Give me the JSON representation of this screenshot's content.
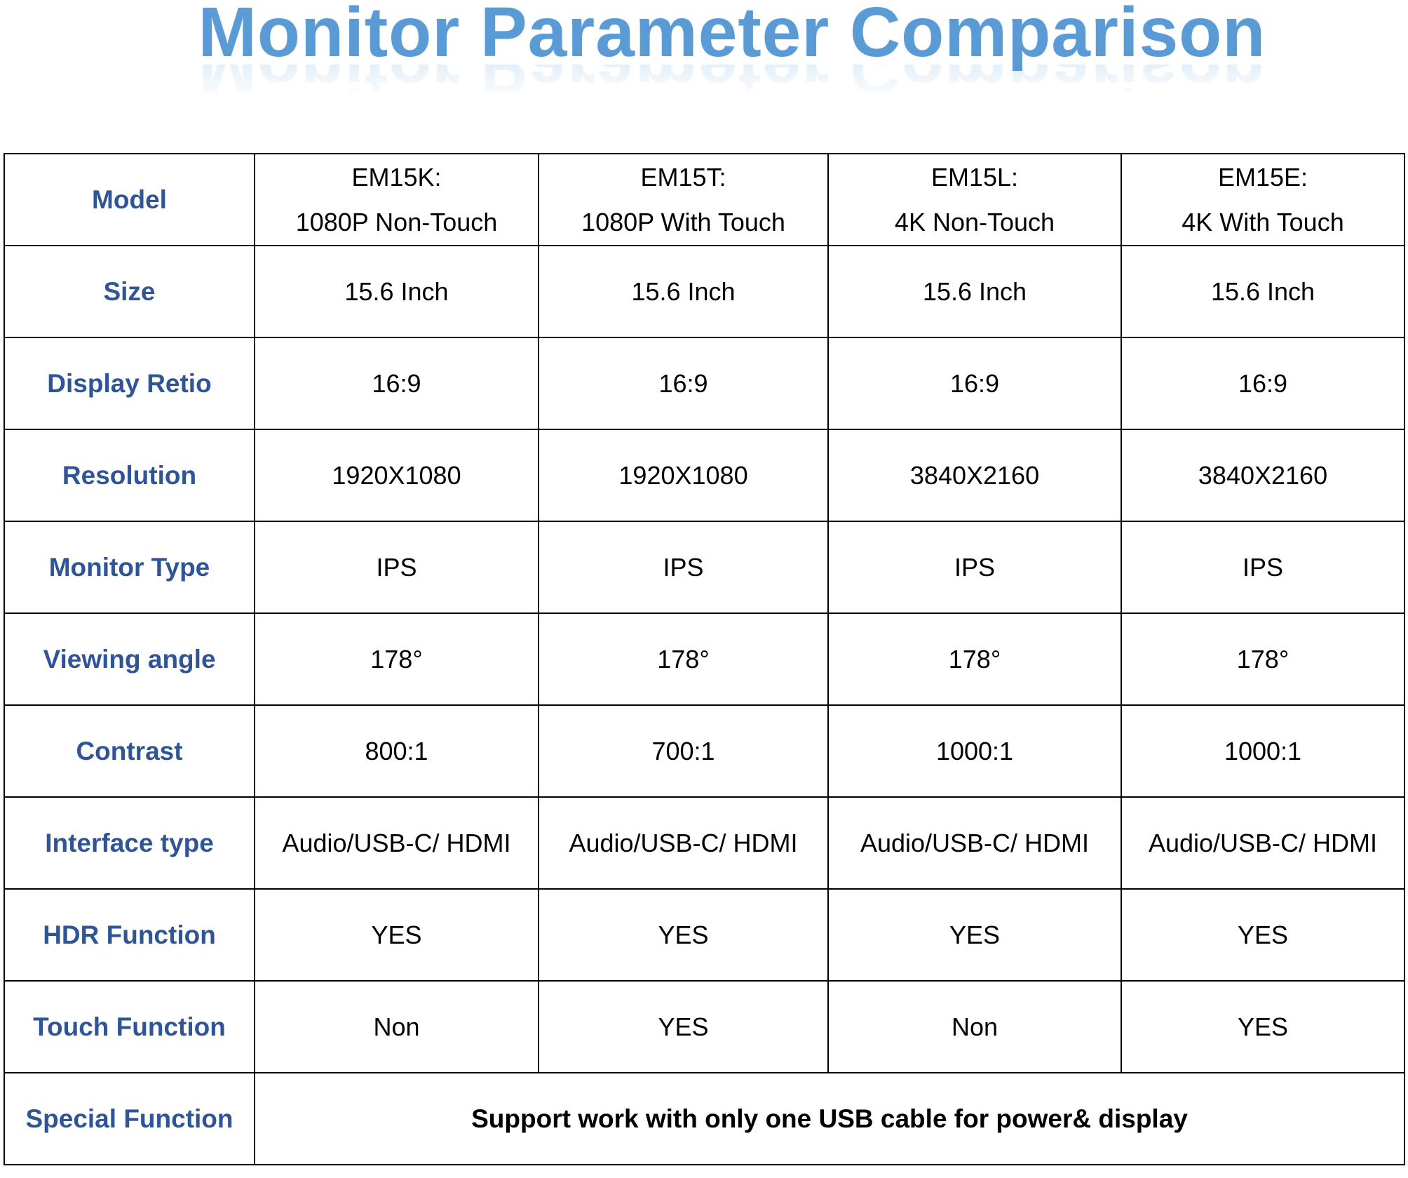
{
  "title": "Monitor Parameter Comparison",
  "table": {
    "models": [
      {
        "code": "EM15K:",
        "desc": "1080P Non-Touch"
      },
      {
        "code": "EM15T:",
        "desc": "1080P With Touch"
      },
      {
        "code": "EM15L:",
        "desc": "4K Non-Touch"
      },
      {
        "code": "EM15E:",
        "desc": "4K With Touch"
      }
    ],
    "rows": [
      {
        "label": "Model"
      },
      {
        "label": "Size",
        "values": [
          "15.6 Inch",
          "15.6 Inch",
          "15.6 Inch",
          "15.6 Inch"
        ]
      },
      {
        "label": "Display Retio",
        "values": [
          "16:9",
          "16:9",
          "16:9",
          "16:9"
        ]
      },
      {
        "label": "Resolution",
        "values": [
          "1920X1080",
          "1920X1080",
          "3840X2160",
          "3840X2160"
        ]
      },
      {
        "label": "Monitor Type",
        "values": [
          "IPS",
          "IPS",
          "IPS",
          "IPS"
        ]
      },
      {
        "label": "Viewing angle",
        "values": [
          "178°",
          "178°",
          "178°",
          "178°"
        ]
      },
      {
        "label": "Contrast",
        "values": [
          "800:1",
          "700:1",
          "1000:1",
          "1000:1"
        ]
      },
      {
        "label": "Interface type",
        "values": [
          "Audio/USB-C/ HDMI",
          "Audio/USB-C/ HDMI",
          "Audio/USB-C/ HDMI",
          "Audio/USB-C/ HDMI"
        ]
      },
      {
        "label": "HDR Function",
        "values": [
          "YES",
          "YES",
          "YES",
          "YES"
        ]
      },
      {
        "label": "Touch Function",
        "values": [
          "Non",
          "YES",
          "Non",
          "YES"
        ]
      },
      {
        "label": "Special Function",
        "span_value": "Support work with only one USB cable for power& display"
      }
    ]
  }
}
